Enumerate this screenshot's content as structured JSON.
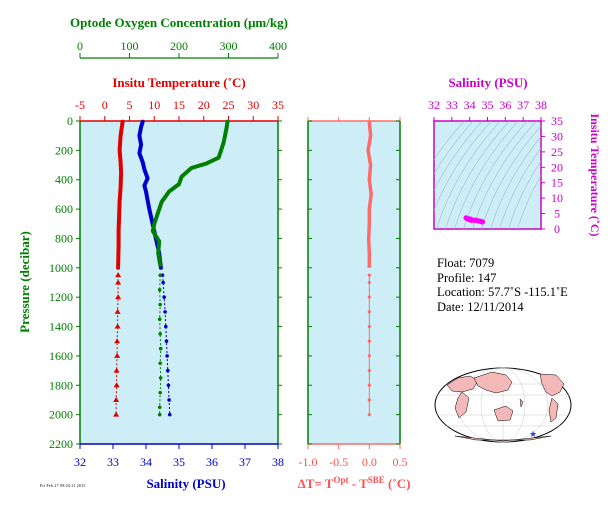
{
  "chart_data": [
    {
      "type": "line",
      "panel": "profile",
      "ylabel": "Pressure (decibar)",
      "ylim": [
        2200,
        0
      ],
      "yticks": [
        0,
        200,
        400,
        600,
        800,
        1000,
        1200,
        1400,
        1600,
        1800,
        2000,
        2200
      ],
      "axes": {
        "oxygen": {
          "label": "Optode Oxygen Concentration (μm/kg)",
          "xlim": [
            0,
            400
          ],
          "ticks": [
            0,
            100,
            200,
            300,
            400
          ],
          "color": "#008000",
          "position": "top-outer"
        },
        "temperature": {
          "label": "Insitu Temperature (˚C)",
          "xlim": [
            -5,
            35
          ],
          "ticks": [
            -5,
            0,
            5,
            10,
            15,
            20,
            25,
            30,
            35
          ],
          "color": "#e00000",
          "position": "top"
        },
        "salinity": {
          "label": "Salinity (PSU)",
          "xlim": [
            32,
            38
          ],
          "ticks": [
            32,
            33,
            34,
            35,
            36,
            37,
            38
          ],
          "color": "#0000cc",
          "position": "bottom"
        }
      },
      "grid": false,
      "background": "#cdeef7",
      "series": [
        {
          "axis": "temperature",
          "color": "#e00000",
          "solid": [
            [
              3.6,
              5
            ],
            [
              3.5,
              30
            ],
            [
              3.2,
              100
            ],
            [
              3.0,
              200
            ],
            [
              3.2,
              280
            ],
            [
              3.3,
              350
            ],
            [
              3.2,
              450
            ],
            [
              3.0,
              550
            ],
            [
              2.9,
              650
            ],
            [
              2.8,
              750
            ],
            [
              2.8,
              850
            ],
            [
              2.7,
              1000
            ]
          ],
          "points": [
            [
              2.7,
              1050
            ],
            [
              2.7,
              1100
            ],
            [
              2.7,
              1200
            ],
            [
              2.6,
              1300
            ],
            [
              2.6,
              1400
            ],
            [
              2.5,
              1500
            ],
            [
              2.5,
              1600
            ],
            [
              2.4,
              1700
            ],
            [
              2.4,
              1800
            ],
            [
              2.3,
              1900
            ],
            [
              2.3,
              2000
            ]
          ],
          "marker": "triangle"
        },
        {
          "axis": "salinity",
          "color": "#0000cc",
          "solid": [
            [
              33.9,
              5
            ],
            [
              33.85,
              40
            ],
            [
              33.8,
              100
            ],
            [
              33.85,
              160
            ],
            [
              33.8,
              220
            ],
            [
              33.9,
              280
            ],
            [
              33.95,
              330
            ],
            [
              34.05,
              390
            ],
            [
              33.95,
              440
            ],
            [
              34.0,
              480
            ],
            [
              34.05,
              540
            ],
            [
              34.1,
              600
            ],
            [
              34.2,
              700
            ],
            [
              34.3,
              800
            ],
            [
              34.4,
              900
            ],
            [
              34.45,
              1000
            ]
          ],
          "points": [
            [
              34.5,
              1050
            ],
            [
              34.52,
              1100
            ],
            [
              34.55,
              1200
            ],
            [
              34.58,
              1300
            ],
            [
              34.6,
              1400
            ],
            [
              34.62,
              1500
            ],
            [
              34.64,
              1600
            ],
            [
              34.66,
              1700
            ],
            [
              34.68,
              1800
            ],
            [
              34.7,
              1900
            ],
            [
              34.72,
              2000
            ]
          ],
          "marker": "dot"
        },
        {
          "axis": "oxygen",
          "color": "#008000",
          "solid": [
            [
              298,
              5
            ],
            [
              296,
              50
            ],
            [
              290,
              150
            ],
            [
              280,
              250
            ],
            [
              255,
              290
            ],
            [
              225,
              320
            ],
            [
              205,
              380
            ],
            [
              200,
              430
            ],
            [
              180,
              480
            ],
            [
              165,
              550
            ],
            [
              160,
              600
            ],
            [
              150,
              700
            ],
            [
              147,
              750
            ],
            [
              160,
              820
            ],
            [
              158,
              900
            ],
            [
              162,
              980
            ]
          ],
          "points": [
            [
              162,
              1050
            ],
            [
              161,
              1150
            ],
            [
              162,
              1250
            ],
            [
              161,
              1350
            ],
            [
              162,
              1450
            ],
            [
              163,
              1550
            ],
            [
              162,
              1650
            ],
            [
              163,
              1750
            ],
            [
              162,
              1850
            ],
            [
              161,
              1950
            ],
            [
              161,
              2000
            ]
          ],
          "marker": "dot"
        }
      ]
    },
    {
      "type": "line",
      "panel": "delta-t",
      "xlabel": "ΔT= T^Opt - T^SBE (˚C)",
      "xlabel_parts": {
        "pre": "ΔT= T",
        "sup1": "Opt",
        "mid": " - T",
        "sup2": "SBE",
        "post": " (˚C)"
      },
      "xlim": [
        -1.0,
        0.5
      ],
      "xticks": [
        "-1.0",
        "-0.5",
        "0.0",
        "0.5"
      ],
      "ylim": [
        2200,
        0
      ],
      "background": "#cdeef7",
      "series": [
        {
          "color": "#ff6b6b",
          "solid": [
            [
              0.0,
              5
            ],
            [
              0.02,
              100
            ],
            [
              -0.02,
              200
            ],
            [
              0.02,
              300
            ],
            [
              0.0,
              400
            ],
            [
              0.03,
              500
            ],
            [
              0.0,
              600
            ],
            [
              0.0,
              700
            ],
            [
              -0.01,
              800
            ],
            [
              0.0,
              900
            ],
            [
              0.0,
              1000
            ]
          ],
          "points": [
            [
              0.0,
              1050
            ],
            [
              0.0,
              1100
            ],
            [
              0.0,
              1200
            ],
            [
              0.0,
              1300
            ],
            [
              0.0,
              1400
            ],
            [
              0.0,
              1500
            ],
            [
              0.0,
              1600
            ],
            [
              0.0,
              1700
            ],
            [
              0.0,
              1800
            ],
            [
              0.0,
              1900
            ],
            [
              0.0,
              2000
            ]
          ],
          "marker": "dot"
        }
      ]
    },
    {
      "type": "scatter",
      "panel": "ts-diagram",
      "xlabel": "Salinity (PSU)",
      "ylabel": "Insitu Temperature (˚C)",
      "xlim": [
        32,
        38
      ],
      "ylim": [
        0,
        35
      ],
      "xticks": [
        32,
        33,
        34,
        35,
        36,
        37,
        38
      ],
      "yticks": [
        0,
        5,
        10,
        15,
        20,
        25,
        30,
        35
      ],
      "color": "#ff00ff",
      "frame_color": "#cc00cc",
      "background": "#cdeef7",
      "points": [
        [
          33.8,
          3.6
        ],
        [
          33.85,
          3.4
        ],
        [
          33.9,
          3.2
        ],
        [
          33.95,
          3.2
        ],
        [
          34.0,
          3.3
        ],
        [
          34.05,
          3.2
        ],
        [
          34.1,
          3.0
        ],
        [
          34.2,
          2.9
        ],
        [
          34.3,
          2.8
        ],
        [
          34.4,
          2.8
        ],
        [
          34.45,
          2.7
        ],
        [
          34.5,
          2.6
        ],
        [
          34.6,
          2.5
        ],
        [
          34.7,
          2.3
        ],
        [
          34.72,
          2.3
        ],
        [
          34.0,
          3.0
        ],
        [
          34.1,
          2.8
        ]
      ]
    }
  ],
  "info": {
    "float": "Float:  7079",
    "profile": "Profile:  147",
    "location": "Location:  57.7˚S  -115.1˚E",
    "date": "Date:  12/11/2014"
  },
  "stamp": "Fri Feb 27 09:04:11 2015",
  "map": {
    "float_marker_color": "#2040ff",
    "land_color": "#f4b8b8",
    "ocean_color": "#ffffff"
  }
}
